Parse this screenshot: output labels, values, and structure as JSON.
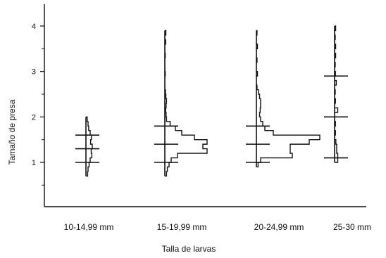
{
  "chart_data": {
    "type": "histogram-profile",
    "xlabel": "Talla de larvas",
    "ylabel": "Tamaño de presa",
    "ylim": [
      0.3,
      4.3
    ],
    "yticks": [
      1,
      2,
      3,
      4
    ],
    "grid": false,
    "categories": [
      "10-14,99 mm",
      "15-19,99 mm",
      "20-24,99 mm",
      "25-30 mm"
    ],
    "groups": [
      {
        "category": "10-14,99 mm",
        "percentile_lines": [
          1.0,
          1.3,
          1.6
        ],
        "profile": [
          {
            "y": 0.7,
            "v": 0.8
          },
          {
            "y": 0.8,
            "v": 1.0
          },
          {
            "y": 0.9,
            "v": 1.5
          },
          {
            "y": 1.0,
            "v": 2.0
          },
          {
            "y": 1.1,
            "v": 2.8
          },
          {
            "y": 1.2,
            "v": 2.5
          },
          {
            "y": 1.3,
            "v": 3.0
          },
          {
            "y": 1.4,
            "v": 2.2
          },
          {
            "y": 1.5,
            "v": 2.6
          },
          {
            "y": 1.6,
            "v": 2.0
          },
          {
            "y": 1.7,
            "v": 1.3
          },
          {
            "y": 1.8,
            "v": 1.0
          },
          {
            "y": 1.9,
            "v": 0.6
          }
        ]
      },
      {
        "category": "15-19,99 mm",
        "percentile_lines": [
          1.0,
          1.4,
          1.8
        ],
        "profile": [
          {
            "y": 0.7,
            "v": 0.8
          },
          {
            "y": 0.8,
            "v": 1.2
          },
          {
            "y": 0.9,
            "v": 2.0
          },
          {
            "y": 1.0,
            "v": 3.0
          },
          {
            "y": 1.1,
            "v": 6.0
          },
          {
            "y": 1.2,
            "v": 20.0
          },
          {
            "y": 1.3,
            "v": 18.0
          },
          {
            "y": 1.4,
            "v": 20.0
          },
          {
            "y": 1.5,
            "v": 14.0
          },
          {
            "y": 1.6,
            "v": 8.0
          },
          {
            "y": 1.7,
            "v": 5.0
          },
          {
            "y": 1.8,
            "v": 2.5
          },
          {
            "y": 1.9,
            "v": 0.8
          },
          {
            "y": 2.0,
            "v": 0.6
          },
          {
            "y": 2.1,
            "v": 0.4
          },
          {
            "y": 2.2,
            "v": 0.6
          },
          {
            "y": 2.3,
            "v": 0.8
          },
          {
            "y": 2.4,
            "v": 0.5
          },
          {
            "y": 2.5,
            "v": 0.3
          },
          {
            "y": 2.9,
            "v": 0.2
          },
          {
            "y": 3.3,
            "v": 0.2
          },
          {
            "y": 3.6,
            "v": 0.4
          },
          {
            "y": 3.8,
            "v": 0.5
          }
        ]
      },
      {
        "category": "20-24,99 mm",
        "percentile_lines": [
          1.0,
          1.4,
          1.8
        ],
        "profile": [
          {
            "y": 0.9,
            "v": 0.8
          },
          {
            "y": 1.0,
            "v": 2.0
          },
          {
            "y": 1.1,
            "v": 17.0
          },
          {
            "y": 1.2,
            "v": 16.0
          },
          {
            "y": 1.3,
            "v": 16.0
          },
          {
            "y": 1.4,
            "v": 25.0
          },
          {
            "y": 1.5,
            "v": 30.0
          },
          {
            "y": 1.6,
            "v": 8.0
          },
          {
            "y": 1.7,
            "v": 4.0
          },
          {
            "y": 1.8,
            "v": 3.0
          },
          {
            "y": 1.9,
            "v": 2.0
          },
          {
            "y": 2.0,
            "v": 1.5
          },
          {
            "y": 2.1,
            "v": 1.8
          },
          {
            "y": 2.2,
            "v": 2.0
          },
          {
            "y": 2.3,
            "v": 2.0
          },
          {
            "y": 2.4,
            "v": 1.5
          },
          {
            "y": 2.5,
            "v": 1.0
          },
          {
            "y": 2.6,
            "v": 0.3
          },
          {
            "y": 2.9,
            "v": 0.5
          },
          {
            "y": 3.2,
            "v": 0.3
          },
          {
            "y": 3.5,
            "v": 0.5
          },
          {
            "y": 3.8,
            "v": 0.3
          }
        ]
      },
      {
        "category": "25-30 mm",
        "percentile_lines": [
          1.1,
          2.0,
          2.9
        ],
        "profile": [
          {
            "y": 1.0,
            "v": 1.5
          },
          {
            "y": 1.1,
            "v": 1.5
          },
          {
            "y": 1.2,
            "v": 1.0
          },
          {
            "y": 1.3,
            "v": 1.0
          },
          {
            "y": 1.4,
            "v": 0.6
          },
          {
            "y": 1.6,
            "v": 0.4
          },
          {
            "y": 1.8,
            "v": 0.4
          },
          {
            "y": 2.1,
            "v": 1.5
          },
          {
            "y": 2.3,
            "v": 0.4
          },
          {
            "y": 2.5,
            "v": 0.3
          },
          {
            "y": 2.7,
            "v": 0.8
          },
          {
            "y": 2.9,
            "v": 0.4
          },
          {
            "y": 3.1,
            "v": 0.3
          },
          {
            "y": 3.3,
            "v": 0.5
          },
          {
            "y": 3.5,
            "v": 0.5
          },
          {
            "y": 3.7,
            "v": 0.3
          },
          {
            "y": 3.9,
            "v": 0.5
          }
        ]
      }
    ]
  }
}
